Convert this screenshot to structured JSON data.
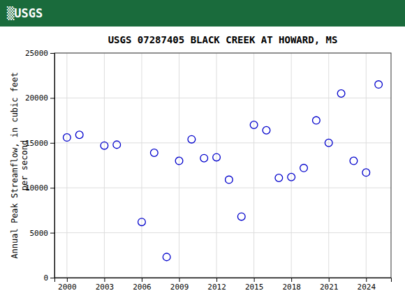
{
  "chart_data": {
    "type": "scatter",
    "title": "USGS 07287405 BLACK CREEK AT HOWARD, MS",
    "annotations": [
      "▒USGS"
    ],
    "ylabel": "Annual Peak Streamflow, in cubic feet\nper second",
    "x": [
      2000,
      2001,
      2003,
      2004,
      2006,
      2007,
      2008,
      2009,
      2010,
      2011,
      2012,
      2013,
      2014,
      2015,
      2016,
      2017,
      2018,
      2019,
      2020,
      2021,
      2022,
      2023,
      2024,
      2025
    ],
    "values": [
      15600,
      15900,
      14700,
      14800,
      6200,
      13900,
      2300,
      13000,
      15400,
      13300,
      13400,
      10900,
      6800,
      17000,
      16400,
      11100,
      11200,
      12200,
      17500,
      15000,
      20500,
      13000,
      11700,
      21500
    ],
    "color": "#0000CC",
    "marker": "circle",
    "xlim": [
      1999,
      2026
    ],
    "xticks": [
      2000,
      2003,
      2006,
      2009,
      2012,
      2015,
      2018,
      2021,
      2024
    ],
    "ylim": [
      0,
      25000
    ],
    "yticks": [
      0,
      5000,
      10000,
      15000,
      20000,
      25000
    ],
    "grid": true
  }
}
